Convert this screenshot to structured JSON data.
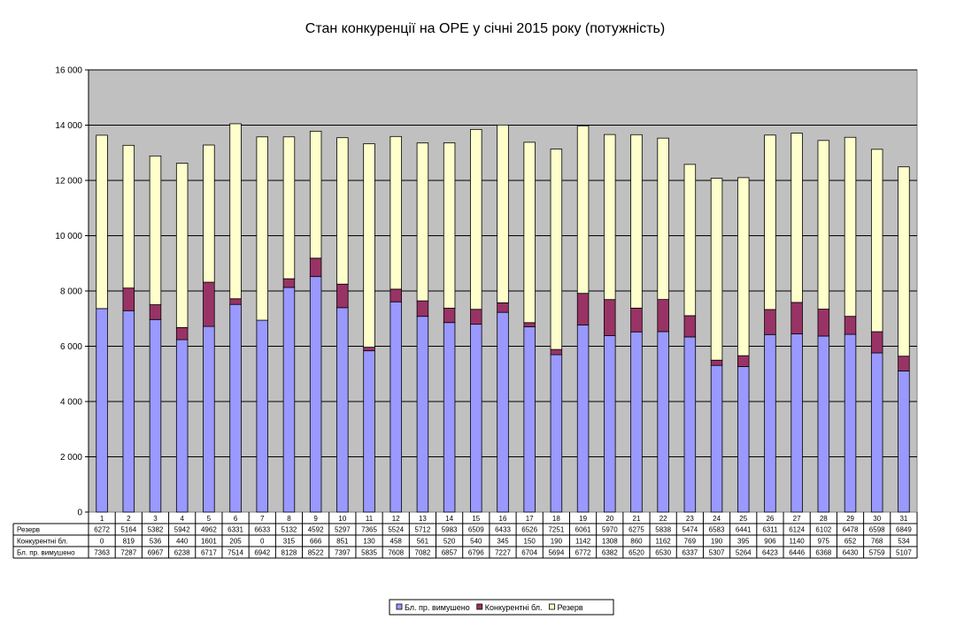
{
  "chart_data": {
    "type": "bar",
    "stacked": true,
    "title": "Стан конкуренції на ОРЕ  у січні 2015 року (потужність)",
    "categories": [
      "1",
      "2",
      "3",
      "4",
      "5",
      "6",
      "7",
      "8",
      "9",
      "10",
      "11",
      "12",
      "13",
      "14",
      "15",
      "16",
      "17",
      "18",
      "19",
      "20",
      "21",
      "22",
      "23",
      "24",
      "25",
      "26",
      "27",
      "28",
      "29",
      "30",
      "31"
    ],
    "series": [
      {
        "name": "Бл. пр. вимушено",
        "color": "#9999ff",
        "values": [
          7363,
          7287,
          6967,
          6238,
          6717,
          7514,
          6942,
          8128,
          8522,
          7397,
          5835,
          7608,
          7082,
          6857,
          6796,
          7227,
          6704,
          5694,
          6772,
          6382,
          6520,
          6530,
          6337,
          5307,
          5264,
          6423,
          6446,
          6368,
          6430,
          5759,
          5107
        ]
      },
      {
        "name": "Конкурентні бл.",
        "color": "#993366",
        "values": [
          0,
          819,
          536,
          440,
          1601,
          205,
          0,
          315,
          666,
          851,
          130,
          458,
          561,
          520,
          540,
          345,
          150,
          190,
          1142,
          1308,
          860,
          1162,
          769,
          190,
          395,
          906,
          1140,
          975,
          652,
          768,
          534
        ]
      },
      {
        "name": "Резерв",
        "color": "#ffffcc",
        "values": [
          6272,
          5164,
          5382,
          5942,
          4962,
          6331,
          6633,
          5132,
          4592,
          5297,
          7365,
          5524,
          5712,
          5983,
          6509,
          6433,
          6526,
          7251,
          6061,
          5970,
          6275,
          5838,
          5474,
          6583,
          6441,
          6311,
          6124,
          6102,
          6478,
          6598,
          6849
        ]
      }
    ],
    "ylim": [
      0,
      16000
    ],
    "yticks": [
      "0",
      "2 000",
      "4 000",
      "6 000",
      "8 000",
      "10 000",
      "12 000",
      "14 000",
      "16 000"
    ],
    "ytick_values": [
      0,
      2000,
      4000,
      6000,
      8000,
      10000,
      12000,
      14000,
      16000
    ],
    "grid": true,
    "plot_background": "#c0c0c0",
    "legend_position": "bottom",
    "data_table": {
      "row_labels": [
        "Резерв",
        "Конкурентні бл.",
        "Бл. пр. вимушено"
      ]
    }
  }
}
